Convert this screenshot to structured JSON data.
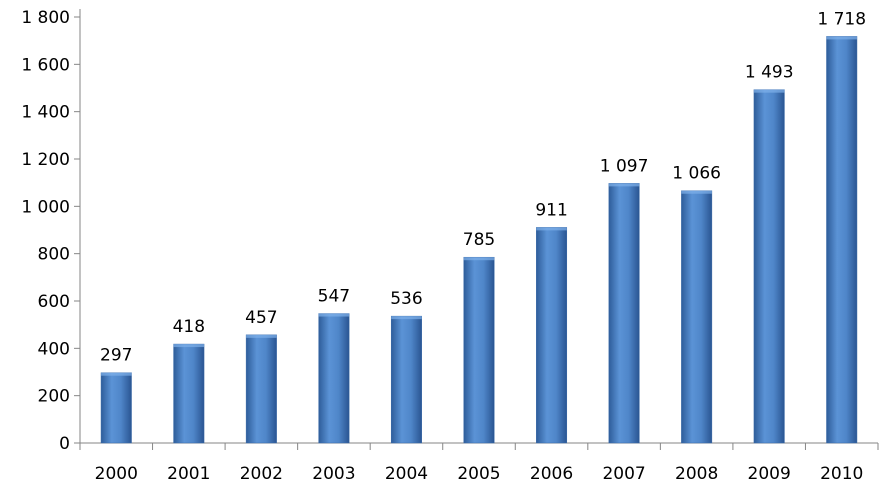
{
  "chart_data": {
    "type": "bar",
    "title": "",
    "xlabel": "",
    "ylabel": "",
    "categories": [
      "2000",
      "2001",
      "2002",
      "2003",
      "2004",
      "2005",
      "2006",
      "2007",
      "2008",
      "2009",
      "2010"
    ],
    "values": [
      297,
      418,
      457,
      547,
      536,
      785,
      911,
      1097,
      1066,
      1493,
      1718
    ],
    "value_labels": [
      "297",
      "418",
      "457",
      "547",
      "536",
      "785",
      "911",
      "1 097",
      "1 066",
      "1 493",
      "1 718"
    ],
    "ylim": [
      0,
      1800
    ],
    "y_ticks": [
      0,
      200,
      400,
      600,
      800,
      1000,
      1200,
      1400,
      1600,
      1800
    ],
    "y_tick_labels": [
      "0",
      "200",
      "400",
      "600",
      "800",
      "1 000",
      "1 200",
      "1 400",
      "1 600",
      "1 800"
    ],
    "grid": false,
    "legend": "none",
    "bar_color": "#4a7ebb"
  }
}
